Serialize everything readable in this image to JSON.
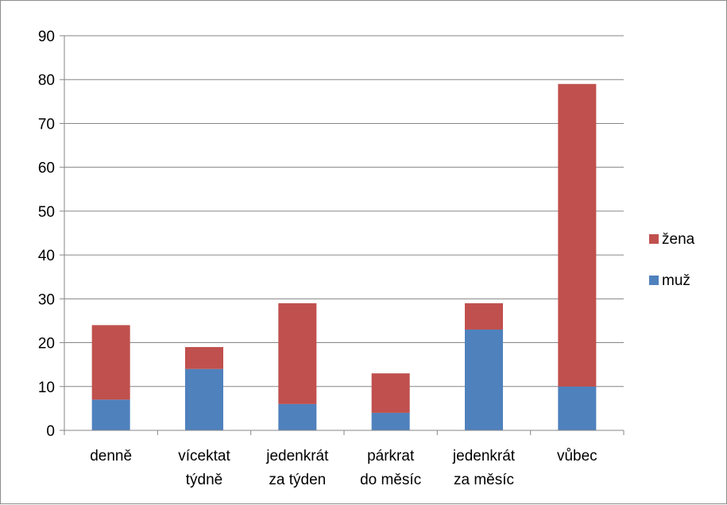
{
  "chart_data": {
    "type": "bar",
    "stacked": true,
    "categories": [
      [
        "denně"
      ],
      [
        "vícektat",
        "týdně"
      ],
      [
        "jedenkrát",
        "za týden"
      ],
      [
        "párkrat",
        "do měsíc"
      ],
      [
        "jedenkrát",
        "za měsíc"
      ],
      [
        "vůbec"
      ]
    ],
    "series": [
      {
        "name": "muž",
        "color": "#4f81bd",
        "values": [
          7,
          14,
          6,
          4,
          23,
          10
        ]
      },
      {
        "name": "žena",
        "color": "#c0504d",
        "values": [
          17,
          5,
          23,
          9,
          6,
          69
        ]
      }
    ],
    "ylim": [
      0,
      90
    ],
    "yticks": [
      0,
      10,
      20,
      30,
      40,
      50,
      60,
      70,
      80,
      90
    ],
    "grid": true,
    "legend": "right",
    "legend_order": [
      "žena",
      "muž"
    ]
  }
}
